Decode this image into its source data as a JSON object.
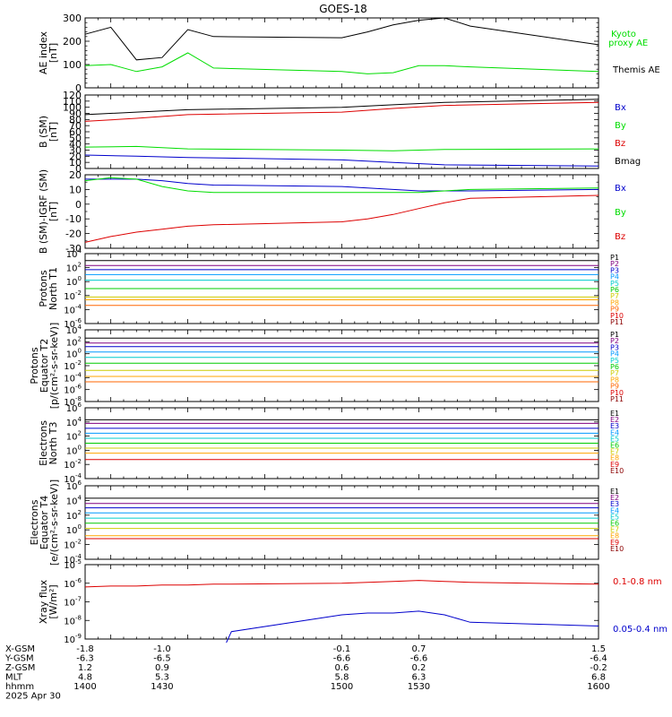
{
  "title": "GOES-18",
  "footer": {
    "row_labels": [
      "X-GSM",
      "Y-GSM",
      "Z-GSM",
      "MLT",
      "hhmm"
    ],
    "date": "2025 Apr 30",
    "columns": [
      [
        "-1.8",
        "-6.3",
        "1.2",
        "4.8",
        "1400"
      ],
      [
        "-1.0",
        "-6.5",
        "0.9",
        "5.3",
        "1430"
      ],
      [
        "-0.1",
        "-6.6",
        "0.6",
        "5.8",
        "1500"
      ],
      [
        "0.7",
        "-6.6",
        "0.2",
        "6.3",
        "1530"
      ],
      [
        "1.5",
        "-6.4",
        "-0.2",
        "6.8",
        "1600"
      ]
    ]
  },
  "chart_data": [
    {
      "type": "line",
      "ylabel": [
        "AE index",
        "[nT]"
      ],
      "ylim": [
        0,
        300
      ],
      "log": false,
      "yticks": [
        0,
        100,
        200,
        300
      ],
      "ticklabels": [
        "0",
        "100",
        "200",
        "300"
      ],
      "minor": 4,
      "x": [
        1400,
        1410,
        1420,
        1430,
        1440,
        1450,
        1500,
        1510,
        1520,
        1530,
        1540,
        1550,
        1600
      ],
      "series": [
        {
          "name": "Kyoto proxy AE",
          "color": "#00dd00",
          "values": [
            95,
            100,
            70,
            90,
            150,
            85,
            70,
            60,
            65,
            95,
            95,
            90,
            70
          ]
        },
        {
          "name": "Themis AE",
          "color": "#000000",
          "values": [
            230,
            260,
            120,
            130,
            250,
            220,
            215,
            240,
            270,
            290,
            300,
            265,
            185
          ]
        }
      ]
    },
    {
      "type": "line",
      "ylabel": [
        "B (SM)",
        "[nT]"
      ],
      "ylim": [
        0,
        120
      ],
      "log": false,
      "yticks": [
        0,
        10,
        20,
        30,
        40,
        50,
        60,
        70,
        80,
        90,
        100,
        110,
        120
      ],
      "ticklabels": [
        "0",
        "10",
        "20",
        "30",
        "40",
        "50",
        "60",
        "70",
        "80",
        "90",
        "100",
        "110",
        "120"
      ],
      "minor": 0,
      "x": [
        1400,
        1420,
        1440,
        1500,
        1520,
        1540,
        1600
      ],
      "series": [
        {
          "name": "Bx",
          "color": "#0000cc",
          "values": [
            22,
            20,
            18,
            14,
            10,
            6,
            4
          ]
        },
        {
          "name": "By",
          "color": "#00dd00",
          "values": [
            35,
            36,
            32,
            30,
            29,
            31,
            32
          ]
        },
        {
          "name": "Bz",
          "color": "#dd0000",
          "values": [
            77,
            82,
            88,
            92,
            98,
            103,
            108
          ]
        },
        {
          "name": "Bmag",
          "color": "#000000",
          "values": [
            88,
            92,
            96,
            100,
            104,
            108,
            113
          ]
        }
      ]
    },
    {
      "type": "line",
      "ylabel": [
        "B (SM)-IGRF (SM)",
        "[nT]"
      ],
      "ylim": [
        -30,
        20
      ],
      "log": false,
      "yticks": [
        -30,
        -20,
        -10,
        0,
        10,
        20
      ],
      "ticklabels": [
        "-30",
        "-20",
        "-10",
        "0",
        "10",
        "20"
      ],
      "minor": 1,
      "x": [
        1400,
        1410,
        1420,
        1430,
        1440,
        1450,
        1500,
        1510,
        1520,
        1530,
        1540,
        1550,
        1600
      ],
      "series": [
        {
          "name": "Bx",
          "color": "#0000cc",
          "values": [
            17,
            17,
            17,
            16,
            14,
            13,
            12,
            11,
            10,
            9,
            9,
            9,
            10
          ]
        },
        {
          "name": "By",
          "color": "#00dd00",
          "values": [
            16,
            18,
            17,
            12,
            9,
            8,
            8,
            8,
            8,
            8,
            9,
            10,
            11
          ]
        },
        {
          "name": "Bz",
          "color": "#dd0000",
          "values": [
            -26,
            -22,
            -19,
            -17,
            -15,
            -14,
            -12,
            -10,
            -7,
            -3,
            1,
            4,
            6
          ]
        }
      ]
    },
    {
      "type": "line",
      "ylabel": [
        "Protons",
        "North T1"
      ],
      "ylim": [
        -6,
        4
      ],
      "log": true,
      "yticks": [
        -6,
        -4,
        -2,
        0,
        2,
        4
      ],
      "ticklabels": [
        "-6",
        "-4",
        "-2",
        "0",
        "2",
        "4"
      ],
      "x": [
        1400,
        1600
      ],
      "series": [
        {
          "name": "P1",
          "color": "#000000",
          "values": [
            3.0,
            3.0
          ]
        },
        {
          "name": "P2",
          "color": "#800080",
          "values": [
            2.3,
            2.3
          ]
        },
        {
          "name": "P3",
          "color": "#0000cc",
          "values": [
            1.7,
            1.7
          ]
        },
        {
          "name": "P4",
          "color": "#0099ff",
          "values": [
            1.0,
            1.0
          ]
        },
        {
          "name": "P5",
          "color": "#00cccc",
          "values": [
            0.2,
            0.2
          ]
        },
        {
          "name": "P6",
          "color": "#00cc00",
          "values": [
            -1.0,
            -1.0
          ]
        },
        {
          "name": "P7",
          "color": "#cccc00",
          "values": [
            -2.2,
            -2.2
          ]
        },
        {
          "name": "P8",
          "color": "#ffa500",
          "values": [
            -2.6,
            -2.6
          ]
        },
        {
          "name": "P9",
          "color": "#ff6600",
          "values": [
            -3.4,
            -3.4
          ]
        },
        {
          "name": "P10",
          "color": "#dd0000",
          "values": null
        },
        {
          "name": "P11",
          "color": "#8b0000",
          "values": null
        }
      ]
    },
    {
      "type": "line",
      "ylabel": [
        "Protons",
        "Equator T2",
        "[p/(cm²-s-sr-keV)]"
      ],
      "ylim": [
        -8,
        4
      ],
      "log": true,
      "yticks": [
        -8,
        -6,
        -4,
        -2,
        0,
        2,
        4
      ],
      "ticklabels": [
        "-8",
        "-6",
        "-4",
        "-2",
        "0",
        "2",
        "4"
      ],
      "x": [
        1400,
        1600
      ],
      "series": [
        {
          "name": "P1",
          "color": "#000000",
          "values": [
            2.6,
            2.6
          ]
        },
        {
          "name": "P2",
          "color": "#800080",
          "values": [
            1.8,
            1.8
          ]
        },
        {
          "name": "P3",
          "color": "#0000cc",
          "values": [
            1.2,
            1.2
          ]
        },
        {
          "name": "P4",
          "color": "#0099ff",
          "values": [
            0.3,
            0.3
          ]
        },
        {
          "name": "P5",
          "color": "#00cccc",
          "values": [
            -0.6,
            -0.6
          ]
        },
        {
          "name": "P6",
          "color": "#00cc00",
          "values": [
            -1.6,
            -1.6
          ]
        },
        {
          "name": "P7",
          "color": "#cccc00",
          "values": [
            -2.8,
            -2.8
          ]
        },
        {
          "name": "P8",
          "color": "#ffa500",
          "values": [
            -3.8,
            -3.8
          ]
        },
        {
          "name": "P9",
          "color": "#ff6600",
          "values": [
            -4.7,
            -4.7
          ]
        },
        {
          "name": "P10",
          "color": "#dd0000",
          "values": null
        },
        {
          "name": "P11",
          "color": "#8b0000",
          "values": null
        }
      ]
    },
    {
      "type": "line",
      "ylabel": [
        "Electrons",
        "North T3"
      ],
      "ylim": [
        -4,
        6
      ],
      "log": true,
      "yticks": [
        -4,
        -2,
        0,
        2,
        4,
        6
      ],
      "ticklabels": [
        "-4",
        "-2",
        "0",
        "2",
        "4",
        "6"
      ],
      "x": [
        1400,
        1600
      ],
      "series": [
        {
          "name": "E1",
          "color": "#000000",
          "values": [
            4.3,
            4.3
          ]
        },
        {
          "name": "E2",
          "color": "#800080",
          "values": [
            3.8,
            3.8
          ]
        },
        {
          "name": "E3",
          "color": "#0000cc",
          "values": [
            3.1,
            3.1
          ]
        },
        {
          "name": "E4",
          "color": "#0099ff",
          "values": [
            2.4,
            2.4
          ]
        },
        {
          "name": "E5",
          "color": "#00cccc",
          "values": [
            1.7,
            1.7
          ]
        },
        {
          "name": "E6",
          "color": "#00cc00",
          "values": [
            1.0,
            1.0
          ]
        },
        {
          "name": "E7",
          "color": "#cccc00",
          "values": [
            0.3,
            0.3
          ]
        },
        {
          "name": "E8",
          "color": "#ffa500",
          "values": [
            -0.4,
            -0.4
          ]
        },
        {
          "name": "E9",
          "color": "#dd0000",
          "values": [
            -1.3,
            -1.3
          ]
        },
        {
          "name": "E10",
          "color": "#8b0000",
          "values": null
        }
      ]
    },
    {
      "type": "line",
      "ylabel": [
        "Electrons",
        "Equator T4",
        "[e/(cm²-s-sr-keV)]"
      ],
      "ylim": [
        -4,
        6
      ],
      "log": true,
      "yticks": [
        -4,
        -2,
        0,
        2,
        4,
        6
      ],
      "ticklabels": [
        "-4",
        "-2",
        "0",
        "2",
        "4",
        "6"
      ],
      "x": [
        1400,
        1600
      ],
      "series": [
        {
          "name": "E1",
          "color": "#000000",
          "values": [
            4.3,
            4.3
          ]
        },
        {
          "name": "E2",
          "color": "#800080",
          "values": [
            3.6,
            3.6
          ]
        },
        {
          "name": "E3",
          "color": "#0000cc",
          "values": [
            3.0,
            3.0
          ]
        },
        {
          "name": "E4",
          "color": "#0099ff",
          "values": [
            2.3,
            2.3
          ]
        },
        {
          "name": "E5",
          "color": "#00cccc",
          "values": [
            1.6,
            1.6
          ]
        },
        {
          "name": "E6",
          "color": "#00cc00",
          "values": [
            0.9,
            0.9
          ]
        },
        {
          "name": "E7",
          "color": "#cccc00",
          "values": [
            0.2,
            0.2
          ]
        },
        {
          "name": "E8",
          "color": "#ffa500",
          "values": [
            -0.8,
            -0.8
          ]
        },
        {
          "name": "E9",
          "color": "#dd0000",
          "values": [
            -1.2,
            -1.2
          ]
        },
        {
          "name": "E10",
          "color": "#8b0000",
          "values": null
        }
      ]
    },
    {
      "type": "line",
      "ylabel": [
        "Xray flux",
        "[W/m²]"
      ],
      "ylim": [
        -9,
        -5
      ],
      "log": true,
      "yticks": [
        -9,
        -8,
        -7,
        -6,
        -5
      ],
      "ticklabels": [
        "-9",
        "-8",
        "-7",
        "-6",
        "-5"
      ],
      "x": [
        1400,
        1410,
        1420,
        1430,
        1440,
        1450,
        1455,
        1457,
        1500,
        1510,
        1520,
        1530,
        1540,
        1550,
        1600
      ],
      "series": [
        {
          "name": "0.1-0.8 nm",
          "color": "#dd0000",
          "values": [
            -6.2,
            -6.15,
            -6.15,
            -6.1,
            -6.1,
            -6.05,
            -6.05,
            -6.05,
            -6.0,
            -5.95,
            -5.9,
            -5.85,
            -5.9,
            -5.95,
            -6.05
          ]
        },
        {
          "name": "0.05-0.4 nm",
          "color": "#0000cc",
          "values": [
            null,
            null,
            null,
            null,
            null,
            null,
            -9.2,
            -8.6,
            -7.7,
            -7.6,
            -7.6,
            -7.5,
            -7.7,
            -8.1,
            -8.3
          ]
        }
      ]
    }
  ]
}
